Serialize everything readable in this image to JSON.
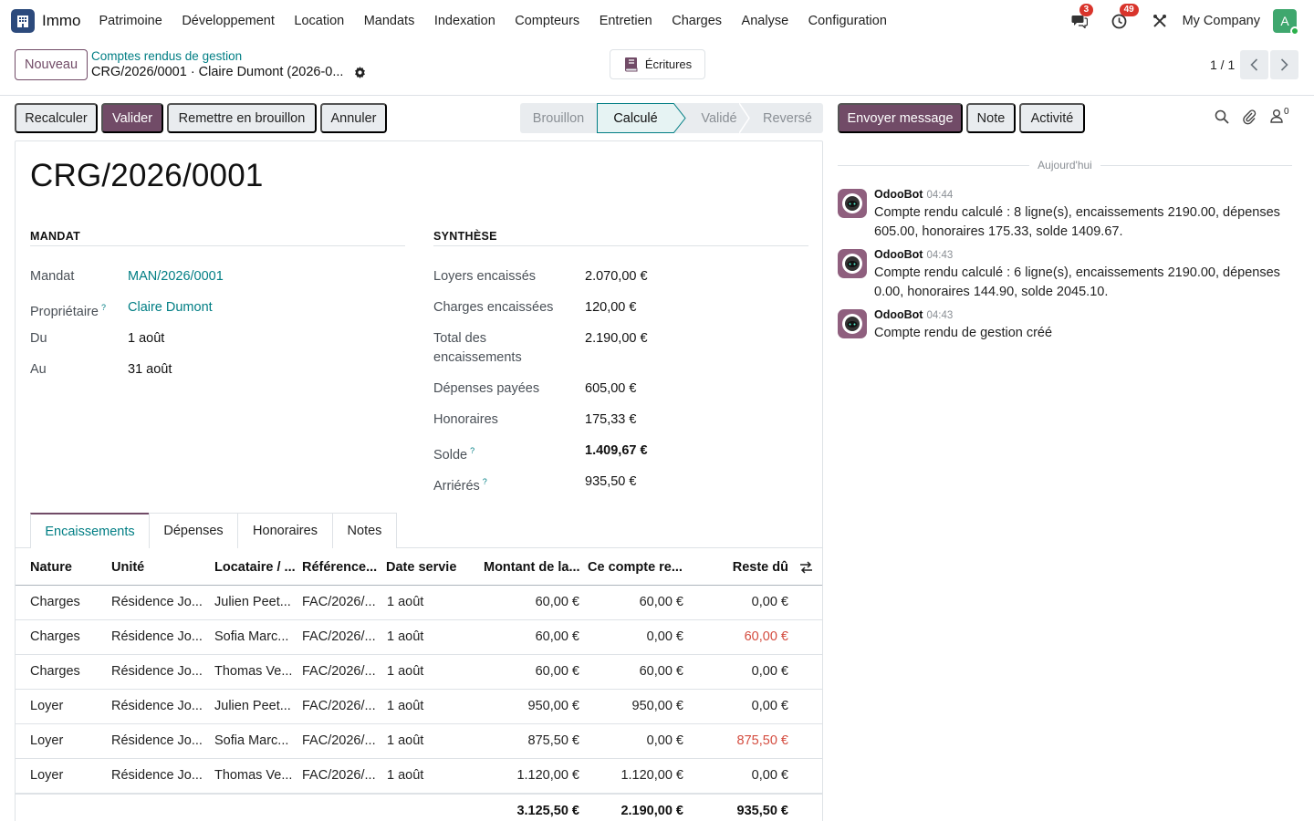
{
  "navbar": {
    "app_name": "Immo",
    "menu": [
      "Patrimoine",
      "Développement",
      "Location",
      "Mandats",
      "Indexation",
      "Compteurs",
      "Entretien",
      "Charges",
      "Analyse",
      "Configuration"
    ],
    "messages_count": "3",
    "activities_count": "49",
    "company": "My Company",
    "avatar_letter": "A"
  },
  "control": {
    "new_label": "Nouveau",
    "breadcrumb_parent": "Comptes rendus de gestion",
    "breadcrumb_current": "CRG/2026/0001 · Claire Dumont (2026-0...",
    "ecritures_label": "Écritures",
    "pager": "1 / 1"
  },
  "actions": {
    "recalculer": "Recalculer",
    "valider": "Valider",
    "brouillon": "Remettre en brouillon",
    "annuler": "Annuler"
  },
  "status": {
    "stages": [
      "Brouillon",
      "Calculé",
      "Validé",
      "Reversé"
    ],
    "active": "Calculé"
  },
  "record": {
    "title": "CRG/2026/0001",
    "mandat_section": "MANDAT",
    "synthese_section": "SYNTHÈSE",
    "left_fields": [
      {
        "label": "Mandat",
        "value": "MAN/2026/0001"
      },
      {
        "label": "Propriétaire",
        "value": "Claire Dumont"
      },
      {
        "label": "Du",
        "value": "1 août"
      },
      {
        "label": "Au",
        "value": "31 août"
      }
    ],
    "right_fields": [
      {
        "label": "Loyers encaissés",
        "value": "2.070,00 €"
      },
      {
        "label": "Charges encaissées",
        "value": "120,00 €"
      },
      {
        "label": "Total des encaissements",
        "value": "2.190,00 €"
      },
      {
        "label": "Dépenses payées",
        "value": "605,00 €"
      },
      {
        "label": "Honoraires",
        "value": "175,33 €"
      },
      {
        "label": "Solde",
        "value": "1.409,67 €"
      },
      {
        "label": "Arriérés",
        "value": "935,50 €"
      }
    ],
    "help_mark": "?"
  },
  "tabs": [
    "Encaissements",
    "Dépenses",
    "Honoraires",
    "Notes"
  ],
  "table": {
    "headers": [
      "Nature",
      "Unité",
      "Locataire / ...",
      "Référence...",
      "Date servie",
      "Montant de la...",
      "Ce compte re...",
      "Reste dû"
    ],
    "rows": [
      [
        "Charges",
        "Résidence Jo...",
        "Julien Peet...",
        "FAC/2026/...",
        "1 août",
        "60,00 €",
        "60,00 €",
        "0,00 €"
      ],
      [
        "Charges",
        "Résidence Jo...",
        "Sofia Marc...",
        "FAC/2026/...",
        "1 août",
        "60,00 €",
        "0,00 €",
        "60,00 €"
      ],
      [
        "Charges",
        "Résidence Jo...",
        "Thomas Ve...",
        "FAC/2026/...",
        "1 août",
        "60,00 €",
        "60,00 €",
        "0,00 €"
      ],
      [
        "Loyer",
        "Résidence Jo...",
        "Julien Peet...",
        "FAC/2026/...",
        "1 août",
        "950,00 €",
        "950,00 €",
        "0,00 €"
      ],
      [
        "Loyer",
        "Résidence Jo...",
        "Sofia Marc...",
        "FAC/2026/...",
        "1 août",
        "875,50 €",
        "0,00 €",
        "875,50 €"
      ],
      [
        "Loyer",
        "Résidence Jo...",
        "Thomas Ve...",
        "FAC/2026/...",
        "1 août",
        "1.120,00 €",
        "1.120,00 €",
        "0,00 €"
      ]
    ],
    "totals": [
      "3.125,50 €",
      "2.190,00 €",
      "935,50 €"
    ],
    "overdue_color": "#d44c3f"
  },
  "chatter": {
    "send_label": "Envoyer message",
    "note_label": "Note",
    "activity_label": "Activité",
    "followers_count": "0",
    "today_label": "Aujourd'hui",
    "messages": [
      {
        "author": "OdooBot",
        "time": "04:44",
        "body": "Compte rendu calculé : 8 ligne(s), encaissements 2190.00, dépenses 605.00, honoraires 175.33, solde 1409.67."
      },
      {
        "author": "OdooBot",
        "time": "04:43",
        "body": "Compte rendu calculé : 6 ligne(s), encaissements 2190.00, dépenses 0.00, honoraires 144.90, solde 2045.10."
      },
      {
        "author": "OdooBot",
        "time": "04:43",
        "body": "Compte rendu de gestion créé"
      }
    ]
  },
  "colors": {
    "brand": "#714b67",
    "link": "#017e84"
  }
}
